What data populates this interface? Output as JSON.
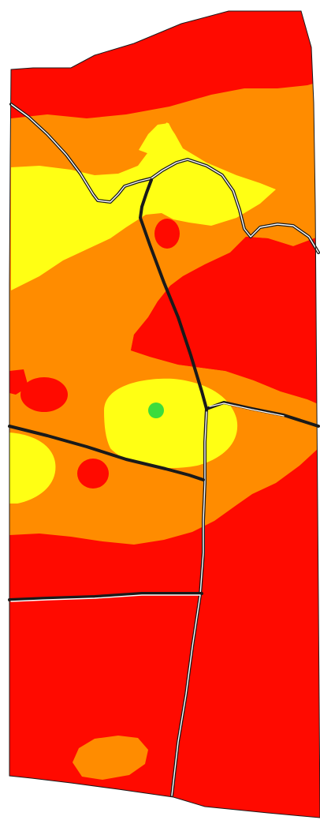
{
  "map": {
    "kind": "field-zone-map",
    "legend_visible": false,
    "colors": {
      "high": "#ff0a00",
      "medium": "#ff8c00",
      "low": "#ffff14",
      "point": "#3cdc3c",
      "boundary_dark": "#1a1a1a",
      "boundary_light": "#ffffff",
      "background": "#ffffff"
    },
    "zone_levels": [
      "high",
      "medium",
      "low"
    ],
    "zone_counts": {
      "high": 6,
      "medium": 2,
      "low": 4
    },
    "marker": {
      "icon": "green-dot",
      "count": 1
    },
    "field_boundaries_count": 5
  }
}
